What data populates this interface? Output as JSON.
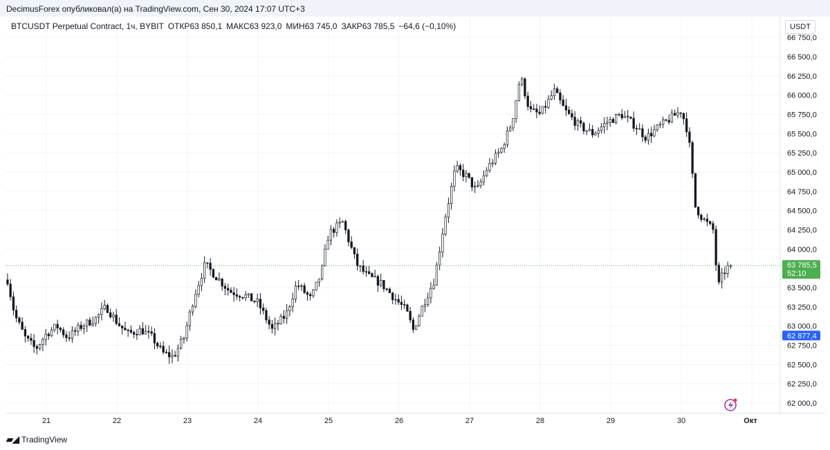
{
  "header": {
    "attribution": "DecimusForex опубликовал(а) на TradingView.com, Сен 30, 2024 17:07 UTC+3"
  },
  "legend": {
    "symbol": "BTCUSDT Perpetual Contract, 1ч, BYBIT",
    "open_label": "ОТКР",
    "open_value": "63 850,1",
    "high_label": "МАКС",
    "high_value": "63 923,0",
    "low_label": "МИН",
    "low_value": "63 745,0",
    "close_label": "ЗАКР",
    "close_value": "63 785,5",
    "change": "−64,6 (−0,10%)"
  },
  "currency": "USDT",
  "footer": {
    "brand": "TradingView",
    "logo": "tv-logo-icon"
  },
  "colors": {
    "candle": "#131722",
    "last_price": "#4caf50",
    "price_marker": "#2962ff",
    "icon": "#9c27b0"
  },
  "chart_data": {
    "type": "candlestick",
    "title": "",
    "xlabel": "",
    "ylabel": "",
    "ylim": [
      61900,
      66850
    ],
    "grid": true,
    "y_ticks": [
      {
        "value": 66750,
        "label": "66 750,0"
      },
      {
        "value": 66500,
        "label": "66 500,0"
      },
      {
        "value": 66250,
        "label": "66 250,0"
      },
      {
        "value": 66000,
        "label": "66 000,0"
      },
      {
        "value": 65750,
        "label": "65 750,0"
      },
      {
        "value": 65500,
        "label": "65 500,0"
      },
      {
        "value": 65250,
        "label": "65 250,0"
      },
      {
        "value": 65000,
        "label": "65 000,0"
      },
      {
        "value": 64750,
        "label": "64 750,0"
      },
      {
        "value": 64500,
        "label": "64 500,0"
      },
      {
        "value": 64250,
        "label": "64 250,0"
      },
      {
        "value": 64000,
        "label": "64 000,0"
      },
      {
        "value": 63500,
        "label": "63 500,0"
      },
      {
        "value": 63250,
        "label": "63 250,0"
      },
      {
        "value": 63000,
        "label": "63 000,0"
      },
      {
        "value": 62750,
        "label": "62 750,0"
      },
      {
        "value": 62500,
        "label": "62 500,0"
      },
      {
        "value": 62250,
        "label": "62 250,0"
      },
      {
        "value": 62000,
        "label": "62 000,0"
      }
    ],
    "x_ticks": [
      {
        "day": 21,
        "label": "21"
      },
      {
        "day": 22,
        "label": "22"
      },
      {
        "day": 23,
        "label": "23"
      },
      {
        "day": 24,
        "label": "24"
      },
      {
        "day": 25,
        "label": "25"
      },
      {
        "day": 26,
        "label": "26"
      },
      {
        "day": 27,
        "label": "27"
      },
      {
        "day": 28,
        "label": "28"
      },
      {
        "day": 29,
        "label": "29"
      },
      {
        "day": 30,
        "label": "30"
      },
      {
        "day": 31,
        "label": "Окт"
      }
    ],
    "last_price": {
      "value": 63785.5,
      "label": "63 785,5",
      "countdown": "52:10"
    },
    "price_marker": {
      "value": 62877.4,
      "label": "62 877,4"
    },
    "series_anchors": [
      {
        "day": 20.45,
        "price": 63600
      },
      {
        "day": 20.55,
        "price": 63150
      },
      {
        "day": 20.7,
        "price": 62850
      },
      {
        "day": 20.85,
        "price": 62700
      },
      {
        "day": 21.0,
        "price": 62900
      },
      {
        "day": 21.15,
        "price": 63000
      },
      {
        "day": 21.3,
        "price": 62850
      },
      {
        "day": 21.5,
        "price": 63000
      },
      {
        "day": 21.7,
        "price": 63100
      },
      {
        "day": 21.85,
        "price": 63250
      },
      {
        "day": 22.0,
        "price": 63050
      },
      {
        "day": 22.15,
        "price": 62900
      },
      {
        "day": 22.35,
        "price": 62950
      },
      {
        "day": 22.5,
        "price": 62850
      },
      {
        "day": 22.65,
        "price": 62650
      },
      {
        "day": 22.8,
        "price": 62600
      },
      {
        "day": 22.95,
        "price": 62850
      },
      {
        "day": 23.1,
        "price": 63400
      },
      {
        "day": 23.25,
        "price": 63800
      },
      {
        "day": 23.4,
        "price": 63650
      },
      {
        "day": 23.6,
        "price": 63450
      },
      {
        "day": 23.8,
        "price": 63400
      },
      {
        "day": 24.0,
        "price": 63300
      },
      {
        "day": 24.2,
        "price": 62950
      },
      {
        "day": 24.4,
        "price": 63150
      },
      {
        "day": 24.55,
        "price": 63550
      },
      {
        "day": 24.75,
        "price": 63350
      },
      {
        "day": 24.9,
        "price": 63700
      },
      {
        "day": 25.0,
        "price": 64200
      },
      {
        "day": 25.2,
        "price": 64350
      },
      {
        "day": 25.4,
        "price": 63800
      },
      {
        "day": 25.55,
        "price": 63650
      },
      {
        "day": 25.75,
        "price": 63550
      },
      {
        "day": 25.9,
        "price": 63400
      },
      {
        "day": 26.1,
        "price": 63200
      },
      {
        "day": 26.2,
        "price": 62950
      },
      {
        "day": 26.35,
        "price": 63300
      },
      {
        "day": 26.5,
        "price": 63600
      },
      {
        "day": 26.65,
        "price": 64400
      },
      {
        "day": 26.8,
        "price": 65050
      },
      {
        "day": 26.95,
        "price": 64950
      },
      {
        "day": 27.1,
        "price": 64750
      },
      {
        "day": 27.25,
        "price": 65050
      },
      {
        "day": 27.45,
        "price": 65300
      },
      {
        "day": 27.6,
        "price": 65650
      },
      {
        "day": 27.72,
        "price": 66250
      },
      {
        "day": 27.85,
        "price": 65800
      },
      {
        "day": 28.0,
        "price": 65750
      },
      {
        "day": 28.2,
        "price": 66050
      },
      {
        "day": 28.35,
        "price": 65800
      },
      {
        "day": 28.55,
        "price": 65600
      },
      {
        "day": 28.75,
        "price": 65500
      },
      {
        "day": 28.95,
        "price": 65650
      },
      {
        "day": 29.15,
        "price": 65750
      },
      {
        "day": 29.35,
        "price": 65600
      },
      {
        "day": 29.5,
        "price": 65450
      },
      {
        "day": 29.7,
        "price": 65600
      },
      {
        "day": 29.85,
        "price": 65700
      },
      {
        "day": 30.0,
        "price": 65800
      },
      {
        "day": 30.1,
        "price": 65500
      },
      {
        "day": 30.2,
        "price": 64550
      },
      {
        "day": 30.3,
        "price": 64400
      },
      {
        "day": 30.45,
        "price": 64250
      },
      {
        "day": 30.52,
        "price": 63500
      },
      {
        "day": 30.6,
        "price": 63700
      },
      {
        "day": 30.7,
        "price": 63785
      }
    ]
  }
}
